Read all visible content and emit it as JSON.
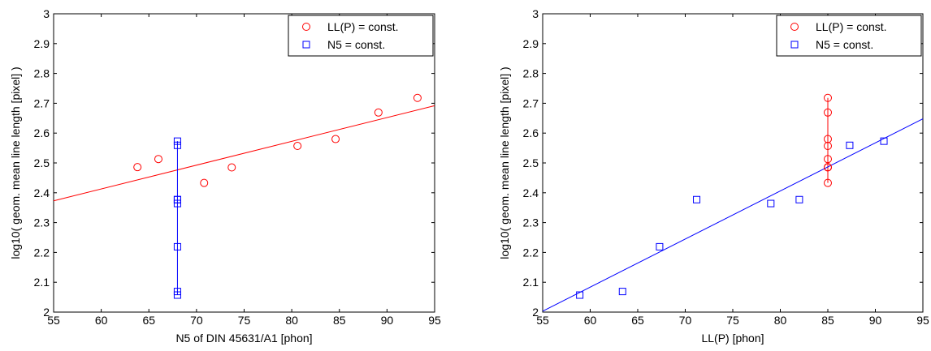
{
  "chart_data": [
    {
      "type": "scatter",
      "xlabel": "N5 of DIN 45631/A1 [phon]",
      "ylabel": "log10( geom. mean line length [pixel] )",
      "xlim": [
        55,
        95
      ],
      "ylim": [
        2,
        3
      ],
      "xticks": [
        55,
        60,
        65,
        70,
        75,
        80,
        85,
        90,
        95
      ],
      "yticks": [
        2,
        2.1,
        2.2,
        2.3,
        2.4,
        2.5,
        2.6,
        2.7,
        2.8,
        2.9,
        3
      ],
      "grid": false,
      "legend_position": "top-right",
      "series": [
        {
          "name": "LL(P) = const.",
          "marker": "circle",
          "color": "#ff0000",
          "x": [
            63.8,
            66.0,
            70.8,
            73.7,
            80.6,
            84.6,
            89.1,
            93.2
          ],
          "y": [
            2.486,
            2.513,
            2.433,
            2.485,
            2.557,
            2.58,
            2.669,
            2.718
          ],
          "fit_line": {
            "x": [
              55,
              95
            ],
            "y": [
              2.373,
              2.692
            ]
          }
        },
        {
          "name": "N5 = const.",
          "marker": "square",
          "color": "#0000ff",
          "x": [
            68,
            68,
            68,
            68,
            68,
            68,
            68,
            68
          ],
          "y": [
            2.057,
            2.069,
            2.219,
            2.364,
            2.377,
            2.377,
            2.559,
            2.573
          ],
          "fit_line": {
            "x": [
              68,
              68
            ],
            "y": [
              2.057,
              2.573
            ]
          }
        }
      ]
    },
    {
      "type": "scatter",
      "xlabel": "LL(P) [phon]",
      "ylabel": "log10( geom. mean line length [pixel] )",
      "xlim": [
        55,
        95
      ],
      "ylim": [
        2,
        3
      ],
      "xticks": [
        55,
        60,
        65,
        70,
        75,
        80,
        85,
        90,
        95
      ],
      "yticks": [
        2,
        2.1,
        2.2,
        2.3,
        2.4,
        2.5,
        2.6,
        2.7,
        2.8,
        2.9,
        3
      ],
      "grid": false,
      "legend_position": "top-right",
      "series": [
        {
          "name": "LL(P) = const.",
          "marker": "circle",
          "color": "#ff0000",
          "x": [
            85,
            85,
            85,
            85,
            85,
            85,
            85,
            85
          ],
          "y": [
            2.433,
            2.485,
            2.486,
            2.513,
            2.557,
            2.58,
            2.669,
            2.718
          ],
          "fit_line": {
            "x": [
              85,
              85
            ],
            "y": [
              2.433,
              2.718
            ]
          }
        },
        {
          "name": "N5 = const.",
          "marker": "square",
          "color": "#0000ff",
          "x": [
            58.9,
            63.4,
            67.3,
            71.2,
            79.0,
            82.0,
            87.3,
            90.9
          ],
          "y": [
            2.057,
            2.069,
            2.219,
            2.377,
            2.364,
            2.377,
            2.559,
            2.573
          ],
          "fit_line": {
            "x": [
              55,
              95
            ],
            "y": [
              2.003,
              2.648
            ]
          }
        }
      ]
    }
  ]
}
